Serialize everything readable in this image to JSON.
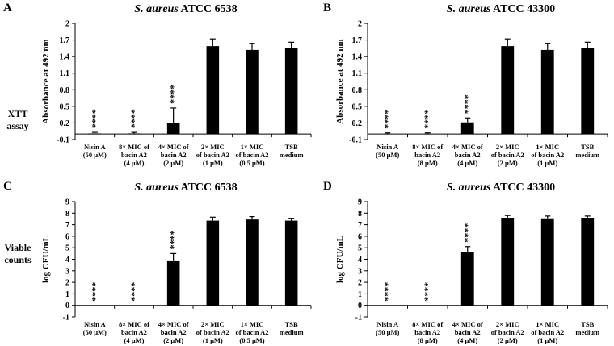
{
  "row_labels": [
    {
      "lines": [
        "XTT",
        "assay"
      ]
    },
    {
      "lines": [
        "Viable",
        "counts"
      ]
    }
  ],
  "chart_data": [
    {
      "panel": "A",
      "type": "bar",
      "title_italic": "S. aureus",
      "title_rest": "ATCC 6538",
      "ylabel": "Absorbance at 492 nm",
      "ylim": [
        -0.1,
        2
      ],
      "yticks": [
        "-0.1",
        "0.2",
        "0.5",
        "0.8",
        "1.1",
        "1.4",
        "1.7",
        "2"
      ],
      "categories": [
        [
          "Nisin A",
          "(50 μM)"
        ],
        [
          "8× MIC of",
          "bacin A2",
          "(4 μM)"
        ],
        [
          "4× MIC of",
          "bacin A2",
          "(2 μM)"
        ],
        [
          "2× MIC",
          "of bacin A2",
          "(1 μM)"
        ],
        [
          "1× MIC",
          "of bacin A2",
          "(0.5 μM)"
        ],
        [
          "TSB",
          "medium"
        ]
      ],
      "values": [
        0.01,
        0.01,
        0.2,
        1.59,
        1.52,
        1.56
      ],
      "errors": [
        0.02,
        0.02,
        0.27,
        0.13,
        0.12,
        0.1
      ],
      "annotations": [
        "****",
        "****",
        "****",
        "",
        "",
        ""
      ],
      "grid": false
    },
    {
      "panel": "B",
      "type": "bar",
      "title_italic": "S. aureus",
      "title_rest": "ATCC 43300",
      "ylabel": "Absorbance at 492 nm",
      "ylim": [
        -0.1,
        2
      ],
      "yticks": [
        "-0.1",
        "0.2",
        "0.5",
        "0.8",
        "1.1",
        "1.4",
        "1.7",
        "2"
      ],
      "categories": [
        [
          "Nisin A",
          "(50 μM)"
        ],
        [
          "8× MIC of",
          "bacin A2",
          "(8 μM)"
        ],
        [
          "4× MIC of",
          "bacin A2",
          "(4 μM)"
        ],
        [
          "2× MIC",
          "of bacin A2",
          "(2 μM)"
        ],
        [
          "1× MIC",
          "of bacin A2",
          "(1 μM)"
        ],
        [
          "TSB",
          "medium"
        ]
      ],
      "values": [
        0.0,
        0.0,
        0.21,
        1.59,
        1.52,
        1.56
      ],
      "errors": [
        0.02,
        0.02,
        0.08,
        0.13,
        0.12,
        0.1
      ],
      "annotations": [
        "****",
        "****",
        "****",
        "",
        "",
        ""
      ],
      "grid": false
    },
    {
      "panel": "C",
      "type": "bar",
      "title_italic": "S. aureus",
      "title_rest": "ATCC 6538",
      "ylabel": "log CFU/mL",
      "ylim": [
        -1,
        9
      ],
      "yticks": [
        "-1",
        "0",
        "1",
        "2",
        "3",
        "4",
        "5",
        "6",
        "7",
        "8",
        "9"
      ],
      "categories": [
        [
          "Nisin A",
          "(50 μM)"
        ],
        [
          "8× MIC of",
          "bacin A2",
          "(4 μM)"
        ],
        [
          "4× MIC of",
          "bacin A2",
          "(2 μM)"
        ],
        [
          "2× MIC",
          "of bacin A2",
          "(1 μM)"
        ],
        [
          "1× MIC",
          "of bacin A2",
          "(0.5 μM)"
        ],
        [
          "TSB",
          "medium"
        ]
      ],
      "values": [
        0.0,
        0.0,
        3.9,
        7.35,
        7.45,
        7.35
      ],
      "errors": [
        0.0,
        0.0,
        0.6,
        0.3,
        0.25,
        0.2
      ],
      "annotations": [
        "****",
        "****",
        "****",
        "",
        "",
        ""
      ],
      "grid": false
    },
    {
      "panel": "D",
      "type": "bar",
      "title_italic": "S. aureus",
      "title_rest": "ATCC 43300",
      "ylabel": "log CFU/mL",
      "ylim": [
        -1,
        9
      ],
      "yticks": [
        "-1",
        "0",
        "1",
        "2",
        "3",
        "4",
        "5",
        "6",
        "7",
        "8",
        "9"
      ],
      "categories": [
        [
          "Nisin A",
          "(50 μM)"
        ],
        [
          "8× MIC of",
          "bacin A2",
          "(8 μM)"
        ],
        [
          "4× MIC of",
          "bacin A2",
          "(4 μM)"
        ],
        [
          "2× MIC",
          "of bacin A2",
          "(2 μM)"
        ],
        [
          "1× MIC",
          "of bacin A2",
          "(1 μM)"
        ],
        [
          "TSB",
          "medium"
        ]
      ],
      "values": [
        0.0,
        0.0,
        4.6,
        7.6,
        7.55,
        7.6
      ],
      "errors": [
        0.0,
        0.0,
        0.5,
        0.2,
        0.2,
        0.15
      ],
      "annotations": [
        "****",
        "****",
        "****",
        "",
        "",
        ""
      ],
      "grid": false
    }
  ]
}
